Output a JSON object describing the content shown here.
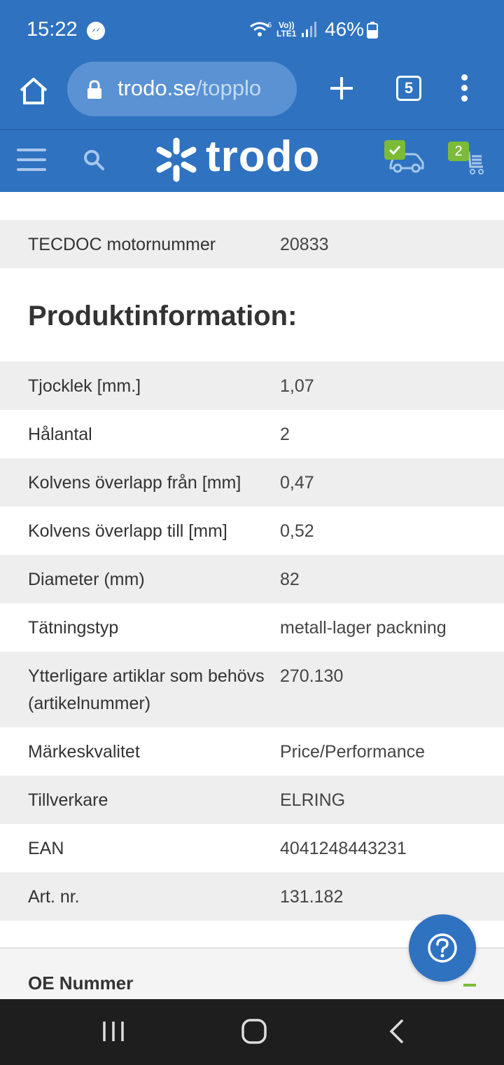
{
  "status_bar": {
    "time": "15:22",
    "volte_line1": "Vo))",
    "volte_line2": "LTE1",
    "battery": "46%"
  },
  "browser": {
    "url_domain": "trodo.se",
    "url_path": "/topplo",
    "tab_count": "5"
  },
  "site_header": {
    "logo_text": "trodo",
    "cart_count": "2"
  },
  "motor_row": {
    "label": "TECDOC motornummer",
    "value": "20833"
  },
  "product_info": {
    "heading": "Produktinformation:",
    "rows": [
      {
        "label": "Tjocklek [mm.]",
        "value": "1,07"
      },
      {
        "label": "Hålantal",
        "value": "2"
      },
      {
        "label": "Kolvens överlapp från [mm]",
        "value": "0,47"
      },
      {
        "label": "Kolvens överlapp till [mm]",
        "value": "0,52"
      },
      {
        "label": "Diameter (mm)",
        "value": "82"
      },
      {
        "label": "Tätningstyp",
        "value": "metall-lager packning"
      },
      {
        "label": "Ytterligare artiklar som behövs (artikelnummer)",
        "value": "270.130"
      },
      {
        "label": "Märkeskvalitet",
        "value": "Price/Performance"
      },
      {
        "label": "Tillverkare",
        "value": "ELRING"
      },
      {
        "label": "EAN",
        "value": "4041248443231"
      },
      {
        "label": "Art. nr.",
        "value": "131.182"
      }
    ]
  },
  "oe_section": {
    "title": "OE Nummer"
  },
  "colors": {
    "brand_blue": "#2f72c0",
    "accent_green": "#7cba3a"
  }
}
